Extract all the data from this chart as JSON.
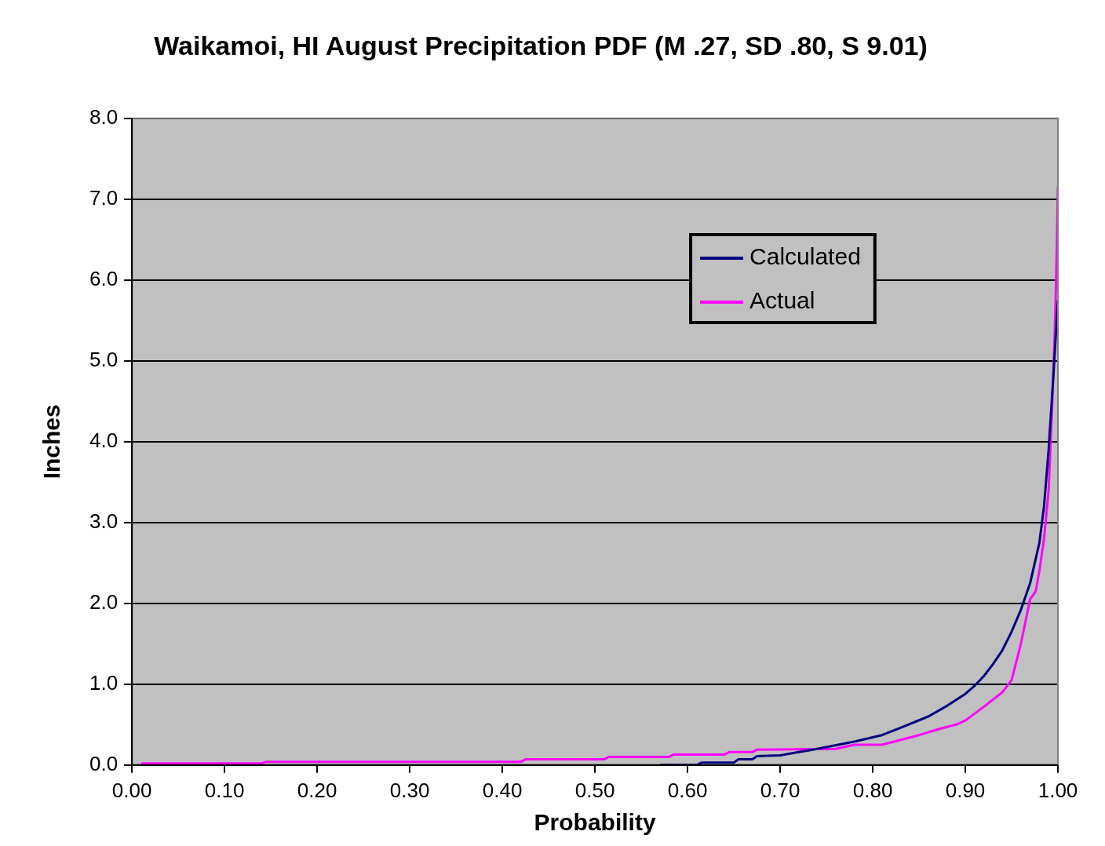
{
  "chart_data": {
    "type": "line",
    "title": "Waikamoi, HI August Precipitation PDF (M .27, SD .80, S 9.01)",
    "xlabel": "Probability",
    "ylabel": "Inches",
    "xlim": [
      0,
      1
    ],
    "xticks": [
      {
        "value": 0,
        "label": "0.00"
      },
      {
        "value": 0.1,
        "label": "0.10"
      },
      {
        "value": 0.2,
        "label": "0.20"
      },
      {
        "value": 0.3,
        "label": "0.30"
      },
      {
        "value": 0.4,
        "label": "0.40"
      },
      {
        "value": 0.5,
        "label": "0.50"
      },
      {
        "value": 0.6,
        "label": "0.60"
      },
      {
        "value": 0.7,
        "label": "0.70"
      },
      {
        "value": 0.8,
        "label": "0.80"
      },
      {
        "value": 0.9,
        "label": "0.90"
      },
      {
        "value": 1,
        "label": "1.00"
      }
    ],
    "ylim": [
      0,
      8
    ],
    "yticks": [
      {
        "value": 0,
        "label": "0.0"
      },
      {
        "value": 1,
        "label": "1.0"
      },
      {
        "value": 2,
        "label": "2.0"
      },
      {
        "value": 3,
        "label": "3.0"
      },
      {
        "value": 4,
        "label": "4.0"
      },
      {
        "value": 5,
        "label": "5.0"
      },
      {
        "value": 6,
        "label": "6.0"
      },
      {
        "value": 7,
        "label": "7.0"
      },
      {
        "value": 8,
        "label": "8.0"
      }
    ],
    "grid": "y",
    "legend": "top right",
    "marker": "none",
    "line_style": "solid",
    "series": [
      {
        "name": "Calculated",
        "color": "#000080",
        "x": [
          0.57,
          0.61,
          0.615,
          0.65,
          0.655,
          0.67,
          0.675,
          0.7,
          0.74,
          0.78,
          0.81,
          0.83,
          0.86,
          0.88,
          0.9,
          0.91,
          0.92,
          0.93,
          0.94,
          0.95,
          0.96,
          0.97,
          0.975,
          0.98,
          0.985,
          0.99,
          0.995,
          1.0
        ],
        "values": [
          0,
          0,
          0.03,
          0.03,
          0.07,
          0.07,
          0.11,
          0.12,
          0.2,
          0.29,
          0.37,
          0.46,
          0.6,
          0.73,
          0.88,
          0.98,
          1.1,
          1.25,
          1.42,
          1.65,
          1.92,
          2.25,
          2.5,
          2.75,
          3.2,
          3.9,
          4.8,
          5.75
        ]
      },
      {
        "name": "Actual",
        "color": "#ff00ff",
        "x": [
          0.01,
          0.14,
          0.145,
          0.42,
          0.425,
          0.51,
          0.515,
          0.58,
          0.585,
          0.64,
          0.645,
          0.67,
          0.675,
          0.76,
          0.78,
          0.81,
          0.85,
          0.87,
          0.89,
          0.9,
          0.92,
          0.94,
          0.95,
          0.96,
          0.97,
          0.976,
          0.98,
          0.985,
          0.99,
          0.994,
          0.997,
          0.999,
          1.0
        ],
        "values": [
          0.02,
          0.02,
          0.04,
          0.04,
          0.07,
          0.07,
          0.1,
          0.1,
          0.13,
          0.13,
          0.16,
          0.16,
          0.19,
          0.2,
          0.25,
          0.25,
          0.37,
          0.44,
          0.5,
          0.55,
          0.72,
          0.9,
          1.05,
          1.5,
          2.05,
          2.15,
          2.4,
          2.8,
          3.4,
          4.5,
          5.5,
          6.5,
          7.15
        ]
      }
    ]
  }
}
